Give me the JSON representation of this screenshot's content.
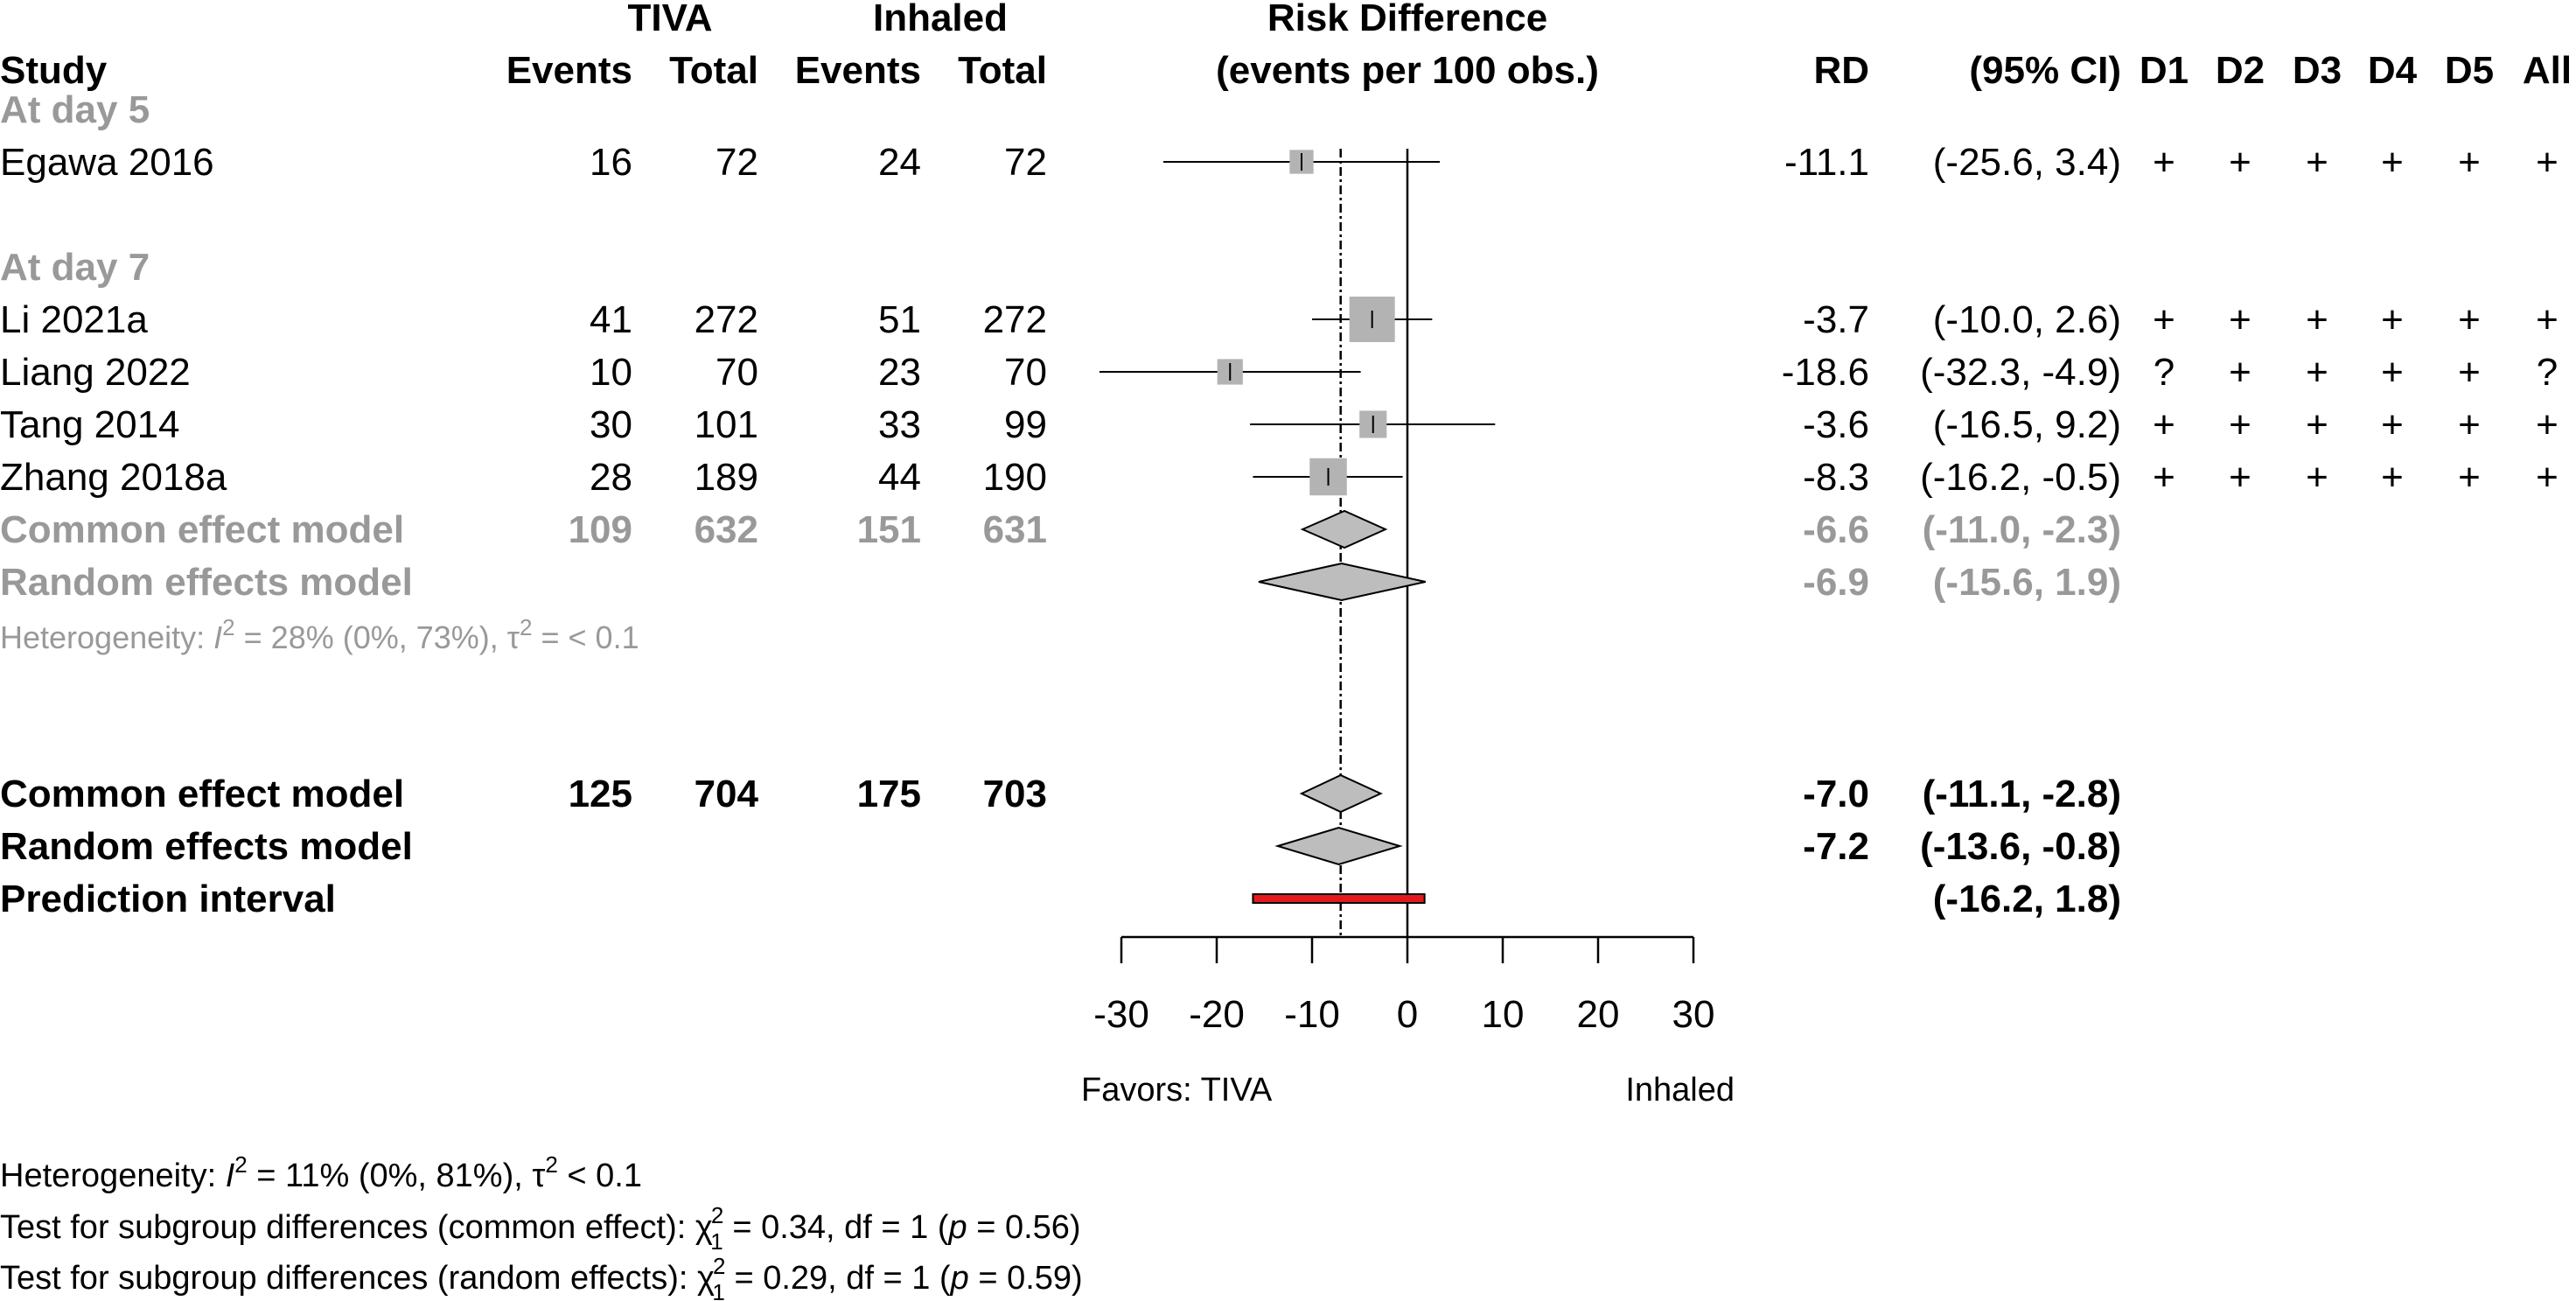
{
  "chart_data": {
    "type": "forest",
    "headers": {
      "study": "Study",
      "group1": "TIVA",
      "group2": "Inhaled",
      "events": "Events",
      "total": "Total",
      "measure_line1": "Risk Difference",
      "measure_line2": "(events per 100 obs.)",
      "rd": "RD",
      "ci": "(95% CI)",
      "domains": [
        "D1",
        "D2",
        "D3",
        "D4",
        "D5",
        "All"
      ]
    },
    "subgroups": [
      {
        "label": "At day 5",
        "studies": [
          {
            "study": "Egawa 2016",
            "e1": "16",
            "n1": "72",
            "e2": "24",
            "n2": "72",
            "rd": -11.1,
            "lo": -25.6,
            "hi": 3.4,
            "rd_text": "-11.1",
            "ci_text": "(-25.6,  3.4)",
            "weight": 0.35,
            "rob": [
              "+",
              "+",
              "+",
              "+",
              "+",
              "+"
            ]
          }
        ]
      },
      {
        "label": "At day 7",
        "studies": [
          {
            "study": "Li 2021a",
            "e1": "41",
            "n1": "272",
            "e2": "51",
            "n2": "272",
            "rd": -3.7,
            "lo": -10.0,
            "hi": 2.6,
            "rd_text": "-3.7",
            "ci_text": "(-10.0,  2.6)",
            "weight": 1.0,
            "rob": [
              "+",
              "+",
              "+",
              "+",
              "+",
              "+"
            ]
          },
          {
            "study": "Liang 2022",
            "e1": "10",
            "n1": "70",
            "e2": "23",
            "n2": "70",
            "rd": -18.6,
            "lo": -32.3,
            "hi": -4.9,
            "rd_text": "-18.6",
            "ci_text": "(-32.3, -4.9)",
            "weight": 0.4,
            "rob": [
              "?",
              "+",
              "+",
              "+",
              "+",
              "?"
            ]
          },
          {
            "study": "Tang 2014",
            "e1": "30",
            "n1": "101",
            "e2": "33",
            "n2": "99",
            "rd": -3.6,
            "lo": -16.5,
            "hi": 9.2,
            "rd_text": "-3.6",
            "ci_text": "(-16.5,  9.2)",
            "weight": 0.45,
            "rob": [
              "+",
              "+",
              "+",
              "+",
              "+",
              "+"
            ]
          },
          {
            "study": "Zhang 2018a",
            "e1": "28",
            "n1": "189",
            "e2": "44",
            "n2": "190",
            "rd": -8.3,
            "lo": -16.2,
            "hi": -0.5,
            "rd_text": "-8.3",
            "ci_text": "(-16.2, -0.5)",
            "weight": 0.75,
            "rob": [
              "+",
              "+",
              "+",
              "+",
              "+",
              "+"
            ]
          }
        ],
        "common": {
          "label": "Common effect model",
          "e1": "109",
          "n1": "632",
          "e2": "151",
          "n2": "631",
          "rd": -6.6,
          "lo": -11.0,
          "hi": -2.3,
          "rd_text": "-6.6",
          "ci_text": "(-11.0, -2.3)"
        },
        "random": {
          "label": "Random effects model",
          "rd": -6.9,
          "lo": -15.6,
          "hi": 1.9,
          "rd_text": "-6.9",
          "ci_text": "(-15.6,  1.9)"
        },
        "heterogeneity": {
          "prefix": "Heterogeneity: ",
          "i2_symbol": "I",
          "sup": "2",
          "i2_text": " = 28% (0%, 73%), ",
          "tau_symbol": "τ",
          "tau_text": " = < 0.1"
        }
      }
    ],
    "overall": {
      "common": {
        "label": "Common effect model",
        "e1": "125",
        "n1": "704",
        "e2": "175",
        "n2": "703",
        "rd": -7.0,
        "lo": -11.1,
        "hi": -2.8,
        "rd_text": "-7.0",
        "ci_text": "(-11.1, -2.8)"
      },
      "random": {
        "label": "Random effects model",
        "rd": -7.2,
        "lo": -13.6,
        "hi": -0.8,
        "rd_text": "-7.2",
        "ci_text": "(-13.6, -0.8)"
      },
      "prediction": {
        "label": "Prediction interval",
        "lo": -16.2,
        "hi": 1.8,
        "ci_text": "(-16.2,  1.8)"
      }
    },
    "axis": {
      "xlim": [
        -30,
        30
      ],
      "ticks": [
        -30,
        -20,
        -10,
        0,
        10,
        20,
        30
      ],
      "tick_labels": [
        "-30",
        "-20",
        "-10",
        "0",
        "10",
        "20",
        "30"
      ],
      "favors_left": "Favors: TIVA",
      "favors_right": "Inhaled",
      "null_value": 0
    },
    "footer": {
      "heterogeneity": {
        "prefix": "Heterogeneity: ",
        "i2_symbol": "I",
        "sup": "2",
        "i2_text": " = 11% (0%, 81%), ",
        "tau_symbol": "τ",
        "tau_text": " < 0.1"
      },
      "subgroup_tests": [
        {
          "prefix": "Test for subgroup differences (common effect): ",
          "chi": "χ",
          "chi_sup": "2",
          "chi_sub": "1",
          "mid": " = 0.34, df = 1 (",
          "p": "p",
          "tail": " = 0.56)"
        },
        {
          "prefix": "Test for subgroup differences (random effects): ",
          "chi": "χ",
          "chi_sup": "2",
          "chi_sub": "1",
          "mid": " = 0.29, df = 1 (",
          "p": "p",
          "tail": " = 0.59)"
        }
      ]
    },
    "colors": {
      "text": "#000000",
      "subgroup_grey": "#999999",
      "square": "#b3b3b3",
      "diamond": "#bdbdbd",
      "prediction": "#e31a1c"
    }
  }
}
